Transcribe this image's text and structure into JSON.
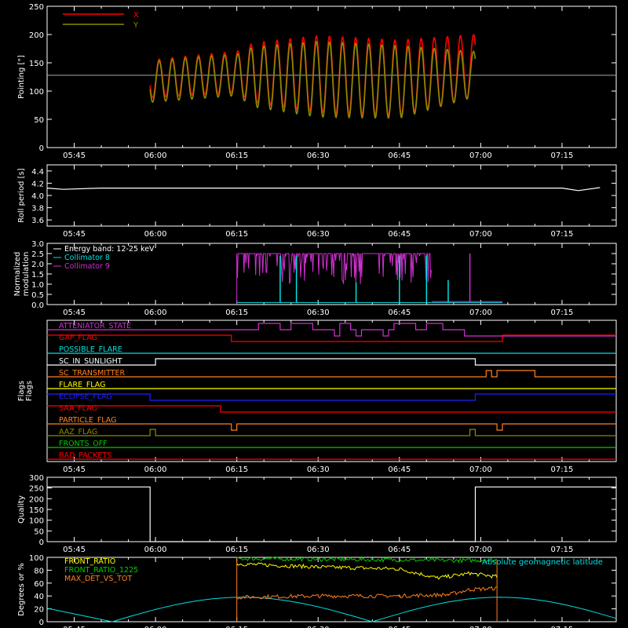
{
  "time_ticks": [
    "05:45",
    "06:00",
    "06:15",
    "06:30",
    "06:45",
    "07:00",
    "07:15"
  ],
  "colors": {
    "background": "#000000",
    "axes": "#ffffff",
    "red": "#ff0000",
    "olive": "#8b8b00",
    "cyan": "#00e0e0",
    "magenta": "#d030d0",
    "green": "#00cc00",
    "yellow": "#ffff00",
    "orange": "#ff8020",
    "blue": "#2020ff"
  },
  "chart_data": [
    {
      "id": "pointing",
      "type": "line",
      "ylabel": "Pointing [\"]",
      "ylim": [
        0,
        250
      ],
      "yticks": [
        0,
        50,
        100,
        150,
        200,
        250
      ],
      "hline": 128,
      "legend": [
        {
          "name": "X",
          "color": "red"
        },
        {
          "name": "Y",
          "color": "olive"
        }
      ],
      "series": [
        {
          "name": "X",
          "color": "red",
          "envelope": [
            {
              "t": "05:59",
              "lo": 88,
              "hi": 155
            },
            {
              "t": "06:07",
              "lo": 93,
              "hi": 163
            },
            {
              "t": "06:15",
              "lo": 97,
              "hi": 170
            },
            {
              "t": "06:18",
              "lo": 80,
              "hi": 185
            },
            {
              "t": "06:30",
              "lo": 62,
              "hi": 198
            },
            {
              "t": "06:45",
              "lo": 56,
              "hi": 190
            },
            {
              "t": "06:59",
              "lo": 90,
              "hi": 200
            }
          ]
        },
        {
          "name": "Y",
          "color": "olive",
          "envelope": [
            {
              "t": "05:59",
              "lo": 80,
              "hi": 152
            },
            {
              "t": "06:07",
              "lo": 86,
              "hi": 160
            },
            {
              "t": "06:15",
              "lo": 92,
              "hi": 165
            },
            {
              "t": "06:18",
              "lo": 72,
              "hi": 178
            },
            {
              "t": "06:30",
              "lo": 54,
              "hi": 188
            },
            {
              "t": "06:45",
              "lo": 52,
              "hi": 180
            },
            {
              "t": "06:59",
              "lo": 90,
              "hi": 170
            }
          ]
        }
      ]
    },
    {
      "id": "roll",
      "type": "line",
      "ylabel": "Roll period [s]",
      "ylim": [
        3.5,
        4.5
      ],
      "yticks": [
        3.6,
        3.8,
        4.0,
        4.2,
        4.4
      ],
      "series": [
        {
          "name": "Roll period",
          "color": "axes",
          "points": [
            {
              "t": "05:40",
              "v": 4.12
            },
            {
              "t": "05:43",
              "v": 4.1
            },
            {
              "t": "05:50",
              "v": 4.12
            },
            {
              "t": "06:15",
              "v": 4.12
            },
            {
              "t": "06:30",
              "v": 4.12
            },
            {
              "t": "07:00",
              "v": 4.12
            },
            {
              "t": "07:15",
              "v": 4.12
            },
            {
              "t": "07:18",
              "v": 4.08
            },
            {
              "t": "07:22",
              "v": 4.13
            }
          ]
        }
      ]
    },
    {
      "id": "modulation",
      "type": "line",
      "ylabel": "Normalized modulation",
      "ylim": [
        0,
        3
      ],
      "yticks": [
        0.0,
        0.5,
        1.0,
        1.5,
        2.0,
        2.5,
        3.0
      ],
      "legend": [
        {
          "name": "Energy band: 12-25 keV",
          "color": "axes"
        },
        {
          "name": "Collimator 8",
          "color": "cyan"
        },
        {
          "name": "Collimator 9",
          "color": "magenta"
        }
      ],
      "series": [
        {
          "name": "Collimator 8",
          "color": "cyan",
          "baseline": 0.1,
          "range": [
            "06:15",
            "07:04"
          ],
          "spikes": [
            {
              "t": "06:23",
              "v": 2.4
            },
            {
              "t": "06:26",
              "v": 2.4
            },
            {
              "t": "06:37",
              "v": 1.1
            },
            {
              "t": "06:45",
              "v": 2.4
            },
            {
              "t": "06:50",
              "v": 2.4
            },
            {
              "t": "06:54",
              "v": 1.2
            }
          ]
        },
        {
          "name": "Collimator 9",
          "color": "magenta",
          "range": [
            "06:15",
            "06:51"
          ],
          "level": 2.5,
          "lo": 1.0,
          "spike": {
            "t": "06:58",
            "v": 2.5
          },
          "tail": 0.15
        }
      ]
    },
    {
      "id": "flags",
      "type": "line",
      "ylabel": "Flags",
      "flags": [
        {
          "name": "ATTENIATOR_STATE",
          "color": "magenta",
          "steps": [
            [
              "05:40",
              0
            ],
            [
              "06:19",
              1
            ],
            [
              "06:23",
              0
            ],
            [
              "06:25",
              1
            ],
            [
              "06:29",
              0
            ],
            [
              "06:33",
              -1
            ],
            [
              "06:34",
              1
            ],
            [
              "06:36",
              0
            ],
            [
              "06:37",
              -1
            ],
            [
              "06:38",
              0
            ],
            [
              "06:42",
              -1
            ],
            [
              "06:43",
              0
            ],
            [
              "06:44",
              1
            ],
            [
              "06:48",
              0
            ],
            [
              "06:50",
              1
            ],
            [
              "06:53",
              0
            ],
            [
              "06:57",
              -1
            ],
            [
              "07:25",
              -1
            ]
          ]
        },
        {
          "name": "GAP_FLAG",
          "color": "red",
          "steps": [
            [
              "05:40",
              1
            ],
            [
              "06:14",
              0
            ],
            [
              "07:04",
              1
            ],
            [
              "07:25",
              1
            ]
          ]
        },
        {
          "name": "POSSIBLE_FLARE",
          "color": "cyan",
          "steps": [
            [
              "05:40",
              0
            ],
            [
              "07:25",
              0
            ]
          ]
        },
        {
          "name": "SC_IN_SUNLIGHT",
          "color": "axes",
          "steps": [
            [
              "05:40",
              0
            ],
            [
              "06:00",
              1
            ],
            [
              "06:59",
              0
            ],
            [
              "07:25",
              0
            ]
          ]
        },
        {
          "name": "SC_TRANSMITTER",
          "color": "orange",
          "steps": [
            [
              "05:40",
              0
            ],
            [
              "07:01",
              1
            ],
            [
              "07:02",
              0
            ],
            [
              "07:03",
              1
            ],
            [
              "07:10",
              0
            ],
            [
              "07:25",
              0
            ]
          ]
        },
        {
          "name": "FLARE_FLAG",
          "color": "yellow",
          "steps": [
            [
              "05:40",
              0
            ],
            [
              "07:25",
              0
            ]
          ]
        },
        {
          "name": "ECLIPSE_FLAG",
          "color": "blue",
          "steps": [
            [
              "05:40",
              1
            ],
            [
              "05:59",
              0
            ],
            [
              "06:59",
              1
            ],
            [
              "07:25",
              1
            ]
          ]
        },
        {
          "name": "SAA_FLAG",
          "color": "red",
          "steps": [
            [
              "05:40",
              1
            ],
            [
              "06:12",
              0
            ],
            [
              "07:25",
              0
            ]
          ]
        },
        {
          "name": "PARTICLE_FLAG",
          "color": "orange",
          "steps": [
            [
              "05:40",
              0
            ],
            [
              "06:14",
              -1
            ],
            [
              "06:15",
              0
            ],
            [
              "07:03",
              -1
            ],
            [
              "07:04",
              0
            ],
            [
              "07:25",
              0
            ]
          ]
        },
        {
          "name": "AAZ_FLAG",
          "color": "olive",
          "steps": [
            [
              "05:40",
              0
            ],
            [
              "05:59",
              1
            ],
            [
              "06:00",
              0
            ],
            [
              "06:58",
              1
            ],
            [
              "06:59",
              0
            ],
            [
              "07:25",
              0
            ]
          ]
        },
        {
          "name": "FRONTS_OFF",
          "color": "green",
          "steps": [
            [
              "05:40",
              0
            ],
            [
              "07:25",
              0
            ]
          ]
        },
        {
          "name": "BAD_PACKETS",
          "color": "red",
          "steps": [
            [
              "05:40",
              0
            ],
            [
              "07:25",
              0
            ]
          ]
        }
      ]
    },
    {
      "id": "quality",
      "type": "line",
      "ylabel": "Quality",
      "ylim": [
        0,
        300
      ],
      "yticks": [
        0,
        50,
        100,
        150,
        200,
        250,
        300
      ],
      "series": [
        {
          "name": "Quality",
          "color": "axes",
          "points": [
            {
              "t": "05:40",
              "v": 255
            },
            {
              "t": "05:59",
              "v": 255
            },
            {
              "t": "05:59",
              "v": 0
            },
            {
              "t": "06:59",
              "v": 0
            },
            {
              "t": "06:59",
              "v": 255
            },
            {
              "t": "07:25",
              "v": 255
            }
          ]
        }
      ]
    },
    {
      "id": "ratios",
      "type": "line",
      "ylabel": "Degrees or %",
      "ylim": [
        0,
        100
      ],
      "yticks": [
        0,
        20,
        40,
        60,
        80,
        100
      ],
      "legend": [
        {
          "name": "FRONT_RATIO",
          "color": "yellow"
        },
        {
          "name": "FRONT_RATIO_1225",
          "color": "green"
        },
        {
          "name": "MAX_DET_VS_TOT",
          "color": "orange"
        },
        {
          "name": "Absolute geomagnetic latitude",
          "color": "cyan"
        }
      ],
      "series": [
        {
          "name": "FRONT_RATIO",
          "color": "yellow",
          "points": [
            {
              "t": "06:15",
              "v": 90
            },
            {
              "t": "06:30",
              "v": 85
            },
            {
              "t": "06:45",
              "v": 82
            },
            {
              "t": "06:52",
              "v": 68
            },
            {
              "t": "06:58",
              "v": 75
            },
            {
              "t": "07:03",
              "v": 70
            }
          ]
        },
        {
          "name": "FRONT_RATIO_1225",
          "color": "green",
          "points": [
            {
              "t": "06:15",
              "v": 98
            },
            {
              "t": "06:30",
              "v": 97
            },
            {
              "t": "06:45",
              "v": 96
            },
            {
              "t": "06:56",
              "v": 95
            },
            {
              "t": "07:03",
              "v": 96
            }
          ]
        },
        {
          "name": "MAX_DET_VS_TOT",
          "color": "orange",
          "points": [
            {
              "t": "06:15",
              "v": 38
            },
            {
              "t": "06:30",
              "v": 40
            },
            {
              "t": "06:45",
              "v": 40
            },
            {
              "t": "06:54",
              "v": 42
            },
            {
              "t": "06:58",
              "v": 50
            },
            {
              "t": "07:03",
              "v": 52
            }
          ]
        },
        {
          "name": "Absolute geomagnetic latitude",
          "color": "cyan",
          "wave": {
            "min": 0,
            "max": 38,
            "zeros": [
              "05:52",
              "06:40",
              "07:27"
            ]
          }
        }
      ]
    }
  ]
}
